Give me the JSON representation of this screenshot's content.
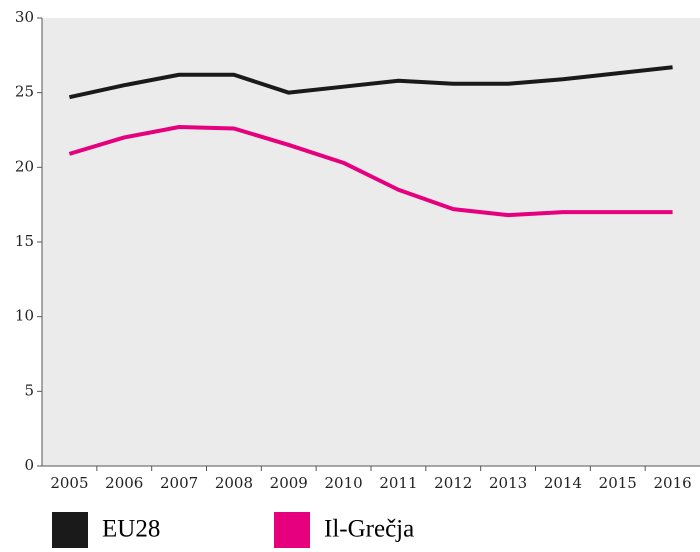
{
  "chart_data": {
    "type": "line",
    "categories": [
      "2005",
      "2006",
      "2007",
      "2008",
      "2009",
      "2010",
      "2011",
      "2012",
      "2013",
      "2014",
      "2015",
      "2016"
    ],
    "series": [
      {
        "name": "EU28",
        "color": "#1a1a1a",
        "values": [
          24.7,
          25.5,
          26.2,
          26.2,
          25.0,
          25.4,
          25.8,
          25.6,
          25.6,
          25.9,
          26.3,
          26.7
        ]
      },
      {
        "name": "Il-Grečja",
        "color": "#e6007e",
        "values": [
          20.9,
          22.0,
          22.7,
          22.6,
          21.5,
          20.3,
          18.5,
          17.2,
          16.8,
          17.0,
          17.0,
          17.0
        ]
      }
    ],
    "ylim": [
      0,
      30
    ],
    "yticks": [
      0,
      5,
      10,
      15,
      20,
      25,
      30
    ],
    "grid": false
  }
}
